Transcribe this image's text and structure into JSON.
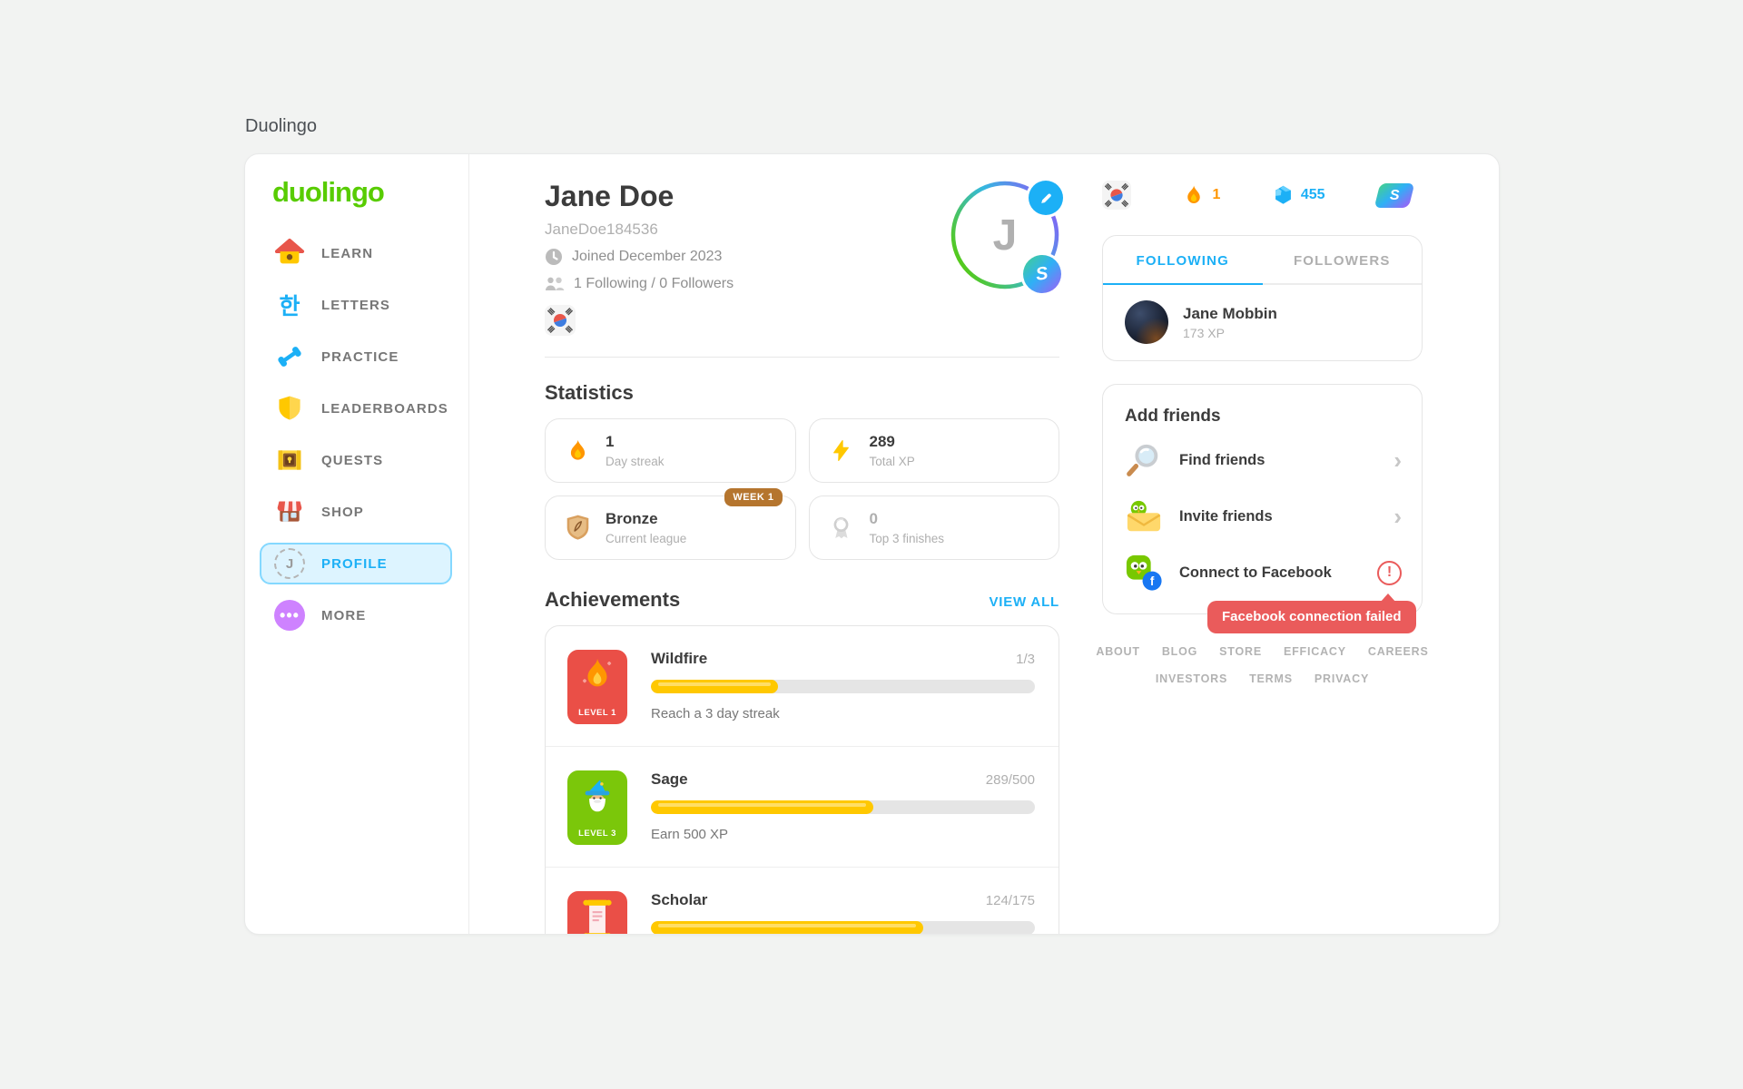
{
  "page": {
    "title": "Duolingo"
  },
  "colors": {
    "brand_green": "#58cc02",
    "link_blue": "#1cb0f6",
    "selected_bg": "#ddf4ff",
    "selected_border": "#84d8ff",
    "error_red": "#ea5b5b",
    "progress_yellow": "#ffc800",
    "streak_orange": "#ff9600",
    "bronze": "#b5752e",
    "text_dark": "#3c3c3c",
    "text_gray": "#777777",
    "text_light": "#afafaf"
  },
  "icons": {
    "chevron": "›",
    "more_dots": "•••",
    "exclaim": "!",
    "super_s": "S",
    "fb_f": "f"
  },
  "sidebar": {
    "logo": "duolingo",
    "items": [
      {
        "label": "LEARN",
        "icon": "home-icon"
      },
      {
        "label": "LETTERS",
        "icon": "hangul-icon",
        "glyph": "한"
      },
      {
        "label": "PRACTICE",
        "icon": "dumbbell-icon"
      },
      {
        "label": "LEADERBOARDS",
        "icon": "shield-icon"
      },
      {
        "label": "QUESTS",
        "icon": "treasure-icon"
      },
      {
        "label": "SHOP",
        "icon": "shop-icon"
      },
      {
        "label": "PROFILE",
        "icon": "profile-circle-icon",
        "glyph": "J",
        "selected": true
      },
      {
        "label": "MORE",
        "icon": "more-icon"
      }
    ]
  },
  "profile": {
    "name": "Jane Doe",
    "username": "JaneDoe184536",
    "joined": "Joined December 2023",
    "follow_summary": "1 Following / 0 Followers",
    "avatar_initial": "J",
    "language": "korean-flag"
  },
  "topbar": {
    "streak_count": "1",
    "gem_count": "455"
  },
  "follow_panel": {
    "tab_following": "FOLLOWING",
    "tab_followers": "FOLLOWERS",
    "active_tab": "FOLLOWING",
    "items": [
      {
        "name": "Jane Mobbin",
        "xp": "173 XP"
      }
    ]
  },
  "add_friends": {
    "title": "Add friends",
    "items": [
      {
        "label": "Find friends",
        "icon": "magnifier-icon"
      },
      {
        "label": "Invite friends",
        "icon": "invite-owl-icon"
      },
      {
        "label": "Connect to Facebook",
        "icon": "facebook-owl-icon",
        "error": true
      }
    ],
    "tooltip": "Facebook connection failed"
  },
  "footer": {
    "row1": [
      "ABOUT",
      "BLOG",
      "STORE",
      "EFFICACY",
      "CAREERS"
    ],
    "row2": [
      "INVESTORS",
      "TERMS",
      "PRIVACY"
    ]
  },
  "statistics": {
    "title": "Statistics",
    "cards": [
      {
        "value": "1",
        "label": "Day streak",
        "icon": "flame-icon"
      },
      {
        "value": "289",
        "label": "Total XP",
        "icon": "bolt-icon"
      },
      {
        "value": "Bronze",
        "label": "Current league",
        "icon": "bronze-shield-icon",
        "badge": "WEEK 1"
      },
      {
        "value": "0",
        "label": "Top 3 finishes",
        "icon": "medal-icon",
        "muted": true
      }
    ]
  },
  "achievements": {
    "title": "Achievements",
    "view_all": "VIEW ALL",
    "items": [
      {
        "name": "Wildfire",
        "level": "LEVEL 1",
        "fraction": "1/3",
        "percent": 33,
        "description": "Reach a 3 day streak",
        "badge": "flame"
      },
      {
        "name": "Sage",
        "level": "LEVEL 3",
        "fraction": "289/500",
        "percent": 58,
        "description": "Earn 500 XP",
        "badge": "wizard"
      },
      {
        "name": "Scholar",
        "fraction": "124/175",
        "percent": 71,
        "badge": "scroll"
      }
    ]
  }
}
